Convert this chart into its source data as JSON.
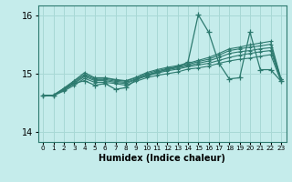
{
  "xlabel": "Humidex (Indice chaleur)",
  "bg_color": "#c5eceb",
  "grid_color": "#a8d8d5",
  "line_color": "#2d7a6f",
  "xlim": [
    -0.5,
    23.5
  ],
  "ylim": [
    13.82,
    16.18
  ],
  "yticks": [
    14,
    15,
    16
  ],
  "xticks": [
    0,
    1,
    2,
    3,
    4,
    5,
    6,
    7,
    8,
    9,
    10,
    11,
    12,
    13,
    14,
    15,
    16,
    17,
    18,
    19,
    20,
    21,
    22,
    23
  ],
  "lines": [
    {
      "y": [
        14.62,
        14.62,
        14.7,
        14.8,
        14.92,
        14.85,
        14.85,
        14.83,
        14.8,
        14.87,
        14.93,
        14.97,
        15.0,
        15.03,
        15.08,
        15.1,
        15.13,
        15.18,
        15.22,
        15.25,
        15.27,
        15.3,
        15.33,
        14.87
      ]
    },
    {
      "y": [
        14.62,
        14.63,
        14.72,
        14.83,
        14.95,
        14.88,
        14.88,
        14.85,
        14.83,
        14.9,
        14.96,
        15.01,
        15.05,
        15.08,
        15.12,
        15.15,
        15.18,
        15.23,
        15.28,
        15.32,
        15.35,
        15.38,
        15.4,
        14.88
      ]
    },
    {
      "y": [
        14.62,
        14.63,
        14.73,
        14.85,
        14.97,
        14.9,
        14.9,
        14.87,
        14.85,
        14.91,
        14.98,
        15.03,
        15.07,
        15.1,
        15.14,
        15.18,
        15.22,
        15.28,
        15.35,
        15.38,
        15.4,
        15.43,
        15.45,
        14.9
      ]
    },
    {
      "y": [
        14.62,
        14.63,
        14.74,
        14.87,
        14.99,
        14.92,
        14.92,
        14.89,
        14.87,
        14.93,
        15.0,
        15.05,
        15.09,
        15.12,
        15.16,
        15.21,
        15.25,
        15.32,
        15.4,
        15.43,
        15.46,
        15.48,
        15.51,
        14.9
      ]
    },
    {
      "y": [
        14.62,
        14.63,
        14.75,
        14.88,
        15.02,
        14.93,
        14.93,
        14.9,
        14.88,
        14.94,
        15.02,
        15.07,
        15.11,
        15.14,
        15.18,
        15.23,
        15.28,
        15.35,
        15.43,
        15.46,
        15.5,
        15.53,
        15.56,
        14.91
      ]
    }
  ],
  "spike_line_y": [
    14.62,
    14.62,
    14.72,
    14.83,
    14.88,
    14.8,
    14.83,
    14.73,
    14.76,
    14.9,
    14.97,
    15.02,
    15.08,
    15.12,
    15.2,
    16.02,
    15.72,
    15.18,
    14.91,
    14.93,
    15.72,
    15.07,
    15.07,
    14.87
  ]
}
